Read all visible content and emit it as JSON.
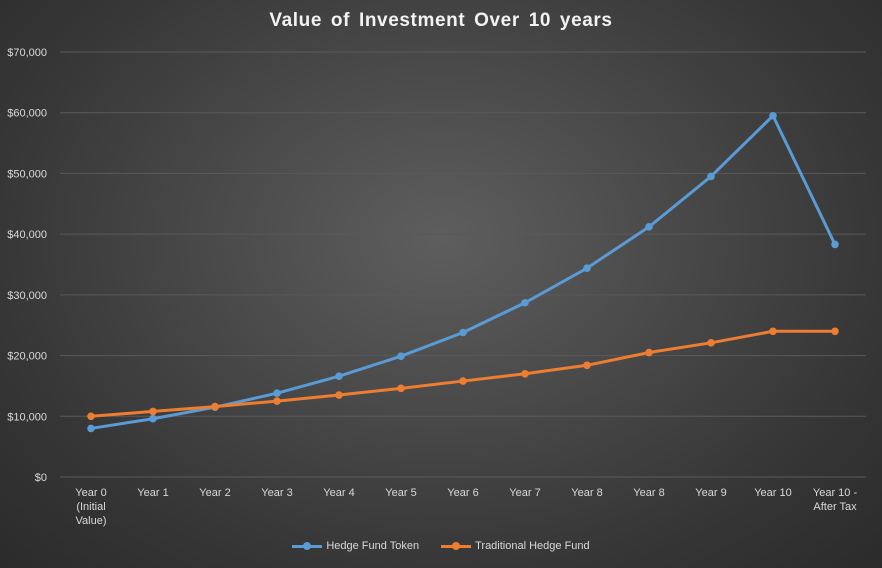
{
  "chart_data": {
    "type": "line",
    "title": "Value of Investment  Over 10 years",
    "categories": [
      "Year 0 (Initial Value)",
      "Year 1",
      "Year 2",
      "Year 3",
      "Year 4",
      "Year 5",
      "Year 6",
      "Year 7",
      "Year 8",
      "Year 8",
      "Year 9",
      "Year 10",
      "Year 10 - After Tax"
    ],
    "category_lines": [
      [
        "Year 0",
        "(Initial",
        "Value)"
      ],
      [
        "Year 1"
      ],
      [
        "Year 2"
      ],
      [
        "Year 3"
      ],
      [
        "Year 4"
      ],
      [
        "Year 5"
      ],
      [
        "Year 6"
      ],
      [
        "Year 7"
      ],
      [
        "Year 8"
      ],
      [
        "Year 8"
      ],
      [
        "Year 9"
      ],
      [
        "Year 10"
      ],
      [
        "Year 10 -",
        "After Tax"
      ]
    ],
    "series": [
      {
        "name": "Hedge Fund Token",
        "color": "#5b9bd5",
        "values": [
          8000,
          9600,
          11500,
          13800,
          16600,
          19900,
          23800,
          28700,
          34400,
          41200,
          49500,
          59500,
          38300
        ]
      },
      {
        "name": "Traditional Hedge Fund",
        "color": "#ed7d31",
        "values": [
          10000,
          10800,
          11600,
          12500,
          13500,
          14600,
          15800,
          17000,
          18400,
          20500,
          22100,
          24000,
          24000
        ]
      }
    ],
    "ylim": [
      0,
      70000
    ],
    "y_ticks": [
      0,
      10000,
      20000,
      30000,
      40000,
      50000,
      60000,
      70000
    ],
    "y_tick_labels": [
      "$0",
      "$10,000",
      "$20,000",
      "$30,000",
      "$40,000",
      "$50,000",
      "$60,000",
      "$70,000"
    ],
    "xlabel": "",
    "ylabel": "",
    "grid": true,
    "gridline_color": "#5a5a5a",
    "legend_position": "bottom"
  }
}
